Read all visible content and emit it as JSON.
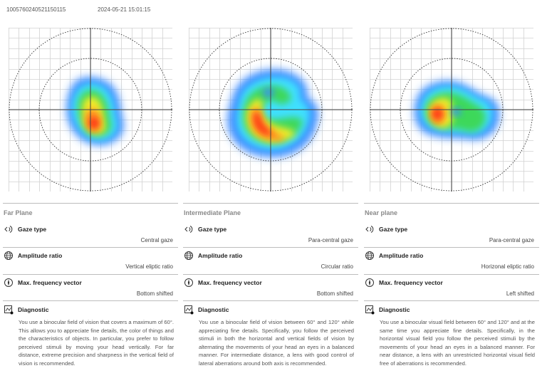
{
  "header": {
    "id": "1005760240521150115",
    "timestamp": "2024-05-21 15:01:15"
  },
  "colors": {
    "grid": "#d2d2d2",
    "axis": "#444444",
    "dotted_circle": "#333333",
    "heat_blue": "#3a8bff",
    "heat_cyan": "#3fe0ff",
    "heat_green": "#3ed85a",
    "heat_yellow": "#f2ec2a",
    "heat_orange": "#ff9020",
    "heat_red": "#ff2a16"
  },
  "planes": [
    {
      "title": "Far Plane",
      "gaze_type_label": "Gaze type",
      "gaze_type_value": "Central gaze",
      "amplitude_label": "Amplitude ratio",
      "amplitude_value": "Vertical eliptic ratio",
      "frequency_label": "Max. frequency vector",
      "frequency_value": "Bottom shifted",
      "diagnostic_label": "Diagnostic",
      "diagnostic_text": "You use a binocular field of vision that covers a maximum of 60°. This allows you to appreciate fine details, the color of things and the characteristics of objects. In particular, you prefer to follow perceived stimuli by moving your head vertically. For far distance, extreme precision and sharpness in the vertical field of vision is recommended."
    },
    {
      "title": "Intermediate Plane",
      "gaze_type_label": "Gaze type",
      "gaze_type_value": "Para-central gaze",
      "amplitude_label": "Amplitude ratio",
      "amplitude_value": "Circular ratio",
      "frequency_label": "Max. frequency vector",
      "frequency_value": "Bottom shifted",
      "diagnostic_label": "Diagnostic",
      "diagnostic_text": "You use a binocular field of vision between 60° and 120° while appreciating fine details. Specifically, you follow the perceived stimuli in both the horizontal and vertical fields of vision by alternating the movements of your head an eyes in a balanced manner. For intermediate distance, a lens with good control of lateral aberrations around both axis is recommended."
    },
    {
      "title": "Near plane",
      "gaze_type_label": "Gaze type",
      "gaze_type_value": "Para-central gaze",
      "amplitude_label": "Amplitude ratio",
      "amplitude_value": "Horizonal eliptic ratio",
      "frequency_label": "Max. frequency vector",
      "frequency_value": "Left shifted",
      "diagnostic_label": "Diagnostic",
      "diagnostic_text": "You use a binocular visual field between 60° and 120° and at the same time you appreciate fine details. Specifically, in the horizontal visual field you follow the perceived stimuli by the movements of your head an eyes in a balanced manner. For near distance, a lens with an unrestricted horizontal visual field free of aberrations is recommended."
    }
  ],
  "icons": {
    "gaze_type": "gaze-sound-icon",
    "amplitude": "globe-icon",
    "frequency": "compass-icon",
    "diagnostic": "chart-icon"
  }
}
